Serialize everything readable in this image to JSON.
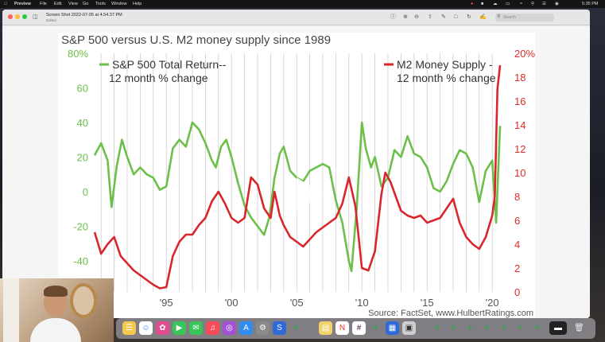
{
  "menubar": {
    "items": [
      "Preview",
      "File",
      "Edit",
      "View",
      "Go",
      "Tools",
      "Window",
      "Help"
    ],
    "clock": "5:35 PM"
  },
  "window": {
    "title": "Screen Shot 2022-07-05 at 4.54.37 PM",
    "subtitle": "Edited",
    "search_placeholder": "Search"
  },
  "colors": {
    "green": "#6cc04a",
    "red": "#d9262c",
    "left_axis": "#6cc04a",
    "right_axis": "#e02b2b"
  },
  "chart_data": {
    "type": "line",
    "title": "S&P 500 versus U.S. M2 money supply since 1989",
    "source": "Source: FactSet, www.HulbertRatings.com",
    "x_tick_labels": [
      "'95",
      "'00",
      "'05",
      "'10",
      "'15",
      "'20"
    ],
    "x_ticks": [
      1995,
      2000,
      2005,
      2010,
      2015,
      2020
    ],
    "xlim": [
      1989.5,
      2020.6
    ],
    "y_left": {
      "ticks": [
        -40,
        -20,
        0,
        20,
        40,
        60,
        80
      ],
      "tick_labels": [
        "-40",
        "-20",
        "0",
        "20",
        "40",
        "60",
        "80%"
      ],
      "lim": [
        -58,
        80
      ]
    },
    "y_right": {
      "ticks": [
        0,
        2,
        4,
        6,
        8,
        10,
        12,
        14,
        16,
        18,
        20
      ],
      "tick_labels": [
        "0",
        "2",
        "4",
        "6",
        "8",
        "10",
        "12",
        "14",
        "16",
        "18",
        "20%"
      ],
      "lim": [
        0,
        20
      ]
    },
    "grid": "vertical",
    "series": [
      {
        "name": "S&P 500 Total Return-- 12 month % change",
        "name_lines": [
          "S&P 500 Total Return--",
          "12 month % change"
        ],
        "axis": "left",
        "color": "#6cc04a",
        "x": [
          1989.5,
          1990.0,
          1990.5,
          1990.8,
          1991.2,
          1991.6,
          1992.0,
          1992.5,
          1993.0,
          1993.5,
          1994.0,
          1994.5,
          1995.0,
          1995.5,
          1996.0,
          1996.5,
          1997.0,
          1997.5,
          1998.0,
          1998.5,
          1998.8,
          1999.2,
          1999.6,
          2000.0,
          2000.5,
          2001.0,
          2001.5,
          2002.0,
          2002.5,
          2002.9,
          2003.3,
          2003.7,
          2004.0,
          2004.5,
          2005.0,
          2005.5,
          2006.0,
          2006.5,
          2007.0,
          2007.5,
          2008.0,
          2008.5,
          2009.0,
          2009.2,
          2009.6,
          2010.0,
          2010.3,
          2010.7,
          2011.0,
          2011.5,
          2012.0,
          2012.5,
          2013.0,
          2013.5,
          2014.0,
          2014.5,
          2015.0,
          2015.5,
          2016.0,
          2016.5,
          2017.0,
          2017.5,
          2018.0,
          2018.5,
          2019.0,
          2019.5,
          2020.0,
          2020.3,
          2020.6
        ],
        "y": [
          21,
          28,
          18,
          -9,
          15,
          30,
          20,
          10,
          14,
          10,
          8,
          1,
          3,
          25,
          30,
          26,
          40,
          36,
          28,
          18,
          14,
          26,
          30,
          20,
          5,
          -8,
          -15,
          -20,
          -25,
          -15,
          8,
          22,
          26,
          12,
          8,
          6,
          12,
          14,
          16,
          14,
          -5,
          -18,
          -40,
          -46,
          -10,
          40,
          25,
          14,
          20,
          3,
          8,
          24,
          20,
          32,
          22,
          20,
          14,
          2,
          0,
          6,
          16,
          24,
          22,
          14,
          -6,
          12,
          18,
          -18,
          38
        ]
      },
      {
        "name": "M2 Money Supply - 12 month % change",
        "name_lines": [
          "M2 Money Supply -",
          "12 month % change"
        ],
        "axis": "right",
        "color": "#d9262c",
        "x": [
          1989.5,
          1990.0,
          1990.5,
          1991.0,
          1991.5,
          1992.0,
          1992.5,
          1993.0,
          1993.5,
          1994.0,
          1994.5,
          1995.0,
          1995.5,
          1996.0,
          1996.5,
          1997.0,
          1997.5,
          1998.0,
          1998.5,
          1999.0,
          1999.5,
          2000.0,
          2000.5,
          2001.0,
          2001.5,
          2002.0,
          2002.5,
          2003.0,
          2003.3,
          2003.7,
          2004.0,
          2004.5,
          2005.0,
          2005.5,
          2006.0,
          2006.5,
          2007.0,
          2007.5,
          2008.0,
          2008.5,
          2009.0,
          2009.5,
          2010.0,
          2010.5,
          2011.0,
          2011.5,
          2011.8,
          2012.2,
          2012.6,
          2013.0,
          2013.5,
          2014.0,
          2014.5,
          2015.0,
          2015.5,
          2016.0,
          2016.5,
          2017.0,
          2017.5,
          2018.0,
          2018.5,
          2019.0,
          2019.5,
          2020.0,
          2020.2,
          2020.4,
          2020.6
        ],
        "y": [
          5.0,
          3.2,
          4.0,
          4.6,
          3.0,
          2.4,
          1.8,
          1.4,
          1.0,
          0.6,
          0.3,
          0.4,
          3.0,
          4.2,
          4.8,
          4.8,
          5.6,
          6.2,
          7.6,
          8.4,
          7.4,
          6.2,
          5.8,
          6.2,
          9.6,
          9.0,
          7.0,
          6.2,
          8.4,
          6.4,
          5.6,
          4.6,
          4.2,
          3.8,
          4.4,
          5.0,
          5.4,
          5.8,
          6.2,
          7.4,
          9.6,
          7.2,
          2.0,
          1.8,
          3.4,
          8.2,
          10.0,
          9.2,
          8.0,
          6.8,
          6.4,
          6.2,
          6.4,
          5.8,
          6.0,
          6.2,
          7.0,
          7.8,
          5.8,
          4.6,
          4.0,
          3.6,
          4.6,
          6.4,
          8.0,
          17.0,
          19.0
        ]
      }
    ]
  }
}
